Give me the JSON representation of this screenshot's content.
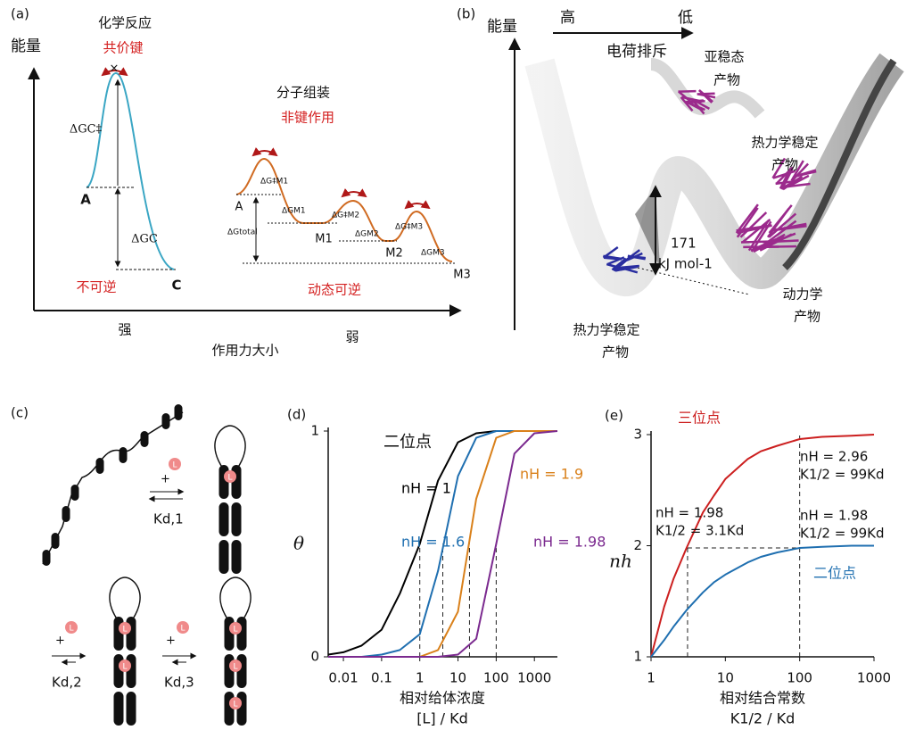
{
  "panel_a": {
    "label": "(a)",
    "y_axis": "能量",
    "reaction": "化学反应",
    "covalent": "共价键",
    "dg_c_ts": "ΔGC‡",
    "a_left": "A",
    "dg_c": "ΔGC",
    "c": "C",
    "irreversible": "不可逆",
    "assembly": "分子组装",
    "noncovalent": "非键作用",
    "a_right": "A",
    "m1": "M1",
    "m2": "M2",
    "m3": "M3",
    "dg_m1_ts": "ΔG‡M1",
    "dg_m1": "ΔGM1",
    "dg_m2_ts": "ΔG‡M2",
    "dg_m2": "ΔGM2",
    "dg_m3_ts": "ΔG‡M3",
    "dg_m3": "ΔGM3",
    "dg_total": "ΔGtotal",
    "dynamic": "动态可逆",
    "strong": "强",
    "weak": "弱",
    "x_axis": "作用力大小"
  },
  "panel_b": {
    "label": "(b)",
    "y_axis": "能量",
    "high": "高",
    "low": "低",
    "repulsion": "电荷排斥",
    "metastable": [
      "亚稳态",
      "产物"
    ],
    "thermo_right": [
      "热力学稳定",
      "产物"
    ],
    "barrier": [
      "171",
      "kJ mol-1"
    ],
    "kinetic": [
      "动力学",
      "产物"
    ],
    "thermo_bottom": [
      "热力学稳定",
      "产物"
    ]
  },
  "panel_c": {
    "label": "(c)",
    "plus": "+",
    "ligand": "L",
    "k1": "Kd,1",
    "k2": "Kd,2",
    "k3": "Kd,3"
  },
  "chart_data": [
    {
      "type": "line",
      "label": "(d)",
      "title": "二位点",
      "log_x": true,
      "x": [
        0.004,
        0.01,
        0.03,
        0.1,
        0.3,
        1,
        3,
        10,
        30,
        100,
        300,
        1000,
        4000
      ],
      "series": [
        {
          "name": "nH = 1",
          "color": "#000000",
          "values": [
            0.01,
            0.02,
            0.05,
            0.12,
            0.28,
            0.5,
            0.78,
            0.95,
            0.99,
            1,
            1,
            1,
            1
          ]
        },
        {
          "name": "nH = 1.6",
          "color": "#1f6fb0",
          "values": [
            0,
            0,
            0,
            0.01,
            0.03,
            0.1,
            0.38,
            0.8,
            0.97,
            1,
            1,
            1,
            1
          ]
        },
        {
          "name": "nH = 1.9",
          "color": "#d9801a",
          "values": [
            0,
            0,
            0,
            0,
            0,
            0,
            0.03,
            0.2,
            0.7,
            0.97,
            1,
            1,
            1
          ]
        },
        {
          "name": "nH = 1.98",
          "color": "#7b2a8f",
          "values": [
            0,
            0,
            0,
            0,
            0,
            0,
            0,
            0.01,
            0.08,
            0.5,
            0.9,
            0.99,
            1
          ]
        }
      ],
      "reference_lines": [
        {
          "x": [
            1,
            1
          ],
          "y": [
            0,
            0.5
          ]
        },
        {
          "x": [
            4,
            4
          ],
          "y": [
            0,
            0.5
          ]
        },
        {
          "x": [
            20,
            20
          ],
          "y": [
            0,
            0.5
          ]
        },
        {
          "x": [
            100,
            100
          ],
          "y": [
            0,
            0.5
          ]
        }
      ],
      "xlim": [
        0.004,
        4000
      ],
      "xticks": [
        0.01,
        0.1,
        1,
        10,
        100,
        1000
      ],
      "ylim": [
        0,
        1
      ],
      "yticks": [
        0,
        1
      ],
      "ylabel": "θ",
      "xlabel": [
        "相对给体浓度",
        "[L] / Kd"
      ]
    },
    {
      "type": "line",
      "label": "(e)",
      "log_x": true,
      "x": [
        1,
        1.5,
        2,
        3,
        5,
        7,
        10,
        20,
        30,
        50,
        100,
        200,
        500,
        1000
      ],
      "series": [
        {
          "name": "三位点",
          "color": "#cc1f1f",
          "values": [
            1,
            1.45,
            1.7,
            1.98,
            2.3,
            2.45,
            2.6,
            2.78,
            2.85,
            2.9,
            2.96,
            2.98,
            2.99,
            3
          ]
        },
        {
          "name": "二位点",
          "color": "#1f6fb0",
          "values": [
            1,
            1.15,
            1.27,
            1.42,
            1.58,
            1.67,
            1.74,
            1.85,
            1.9,
            1.94,
            1.98,
            1.99,
            2,
            2
          ]
        }
      ],
      "reference_lines": [
        {
          "x": [
            3.1,
            3.1
          ],
          "y": [
            1,
            1.98
          ]
        },
        {
          "x": [
            3.1,
            100
          ],
          "y": [
            1.98,
            1.98
          ]
        },
        {
          "x": [
            100,
            100
          ],
          "y": [
            1,
            3
          ]
        }
      ],
      "annotations": [
        [
          "nH = 2.96",
          "K1/2 = 99Kd"
        ],
        [
          "nH = 1.98",
          "K1/2 = 3.1Kd"
        ],
        [
          "nH = 1.98",
          "K1/2 = 99Kd"
        ]
      ],
      "xlim": [
        1,
        1000
      ],
      "xticks": [
        1,
        10,
        100,
        1000
      ],
      "ylim": [
        1,
        3
      ],
      "yticks": [
        1,
        2,
        3
      ],
      "ylabel": "nh",
      "xlabel": [
        "相对结合常数",
        "K1/2 / Kd"
      ]
    }
  ]
}
